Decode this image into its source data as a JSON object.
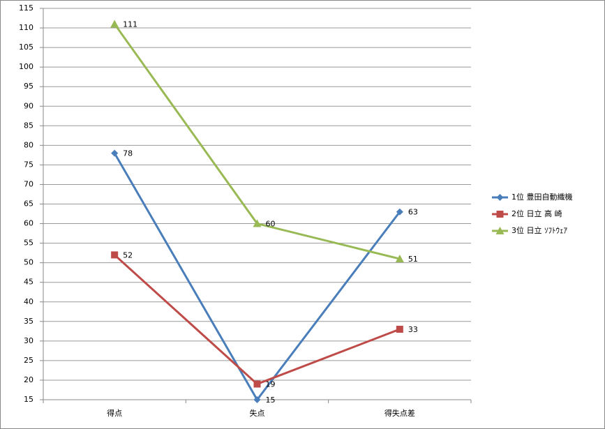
{
  "chart_data": {
    "type": "line",
    "categories": [
      "得点",
      "失点",
      "得失点差"
    ],
    "series": [
      {
        "name": "1位 豊田自動織機",
        "color": "#4a7ebb",
        "marker": "diamond",
        "values": [
          78,
          15,
          63
        ]
      },
      {
        "name": "2位 日立 高 崎",
        "color": "#be4b48",
        "marker": "square",
        "values": [
          52,
          19,
          33
        ]
      },
      {
        "name": "3位 日立 ｿﾌﾄｳｪｱ",
        "color": "#98b954",
        "marker": "triangle",
        "values": [
          111,
          60,
          51
        ]
      }
    ],
    "ylim": [
      15,
      115
    ],
    "yticks": [
      15,
      20,
      25,
      30,
      35,
      40,
      45,
      50,
      55,
      60,
      65,
      70,
      75,
      80,
      85,
      90,
      95,
      100,
      105,
      110,
      115
    ],
    "grid": true,
    "legend": "right",
    "data_labels": true
  }
}
